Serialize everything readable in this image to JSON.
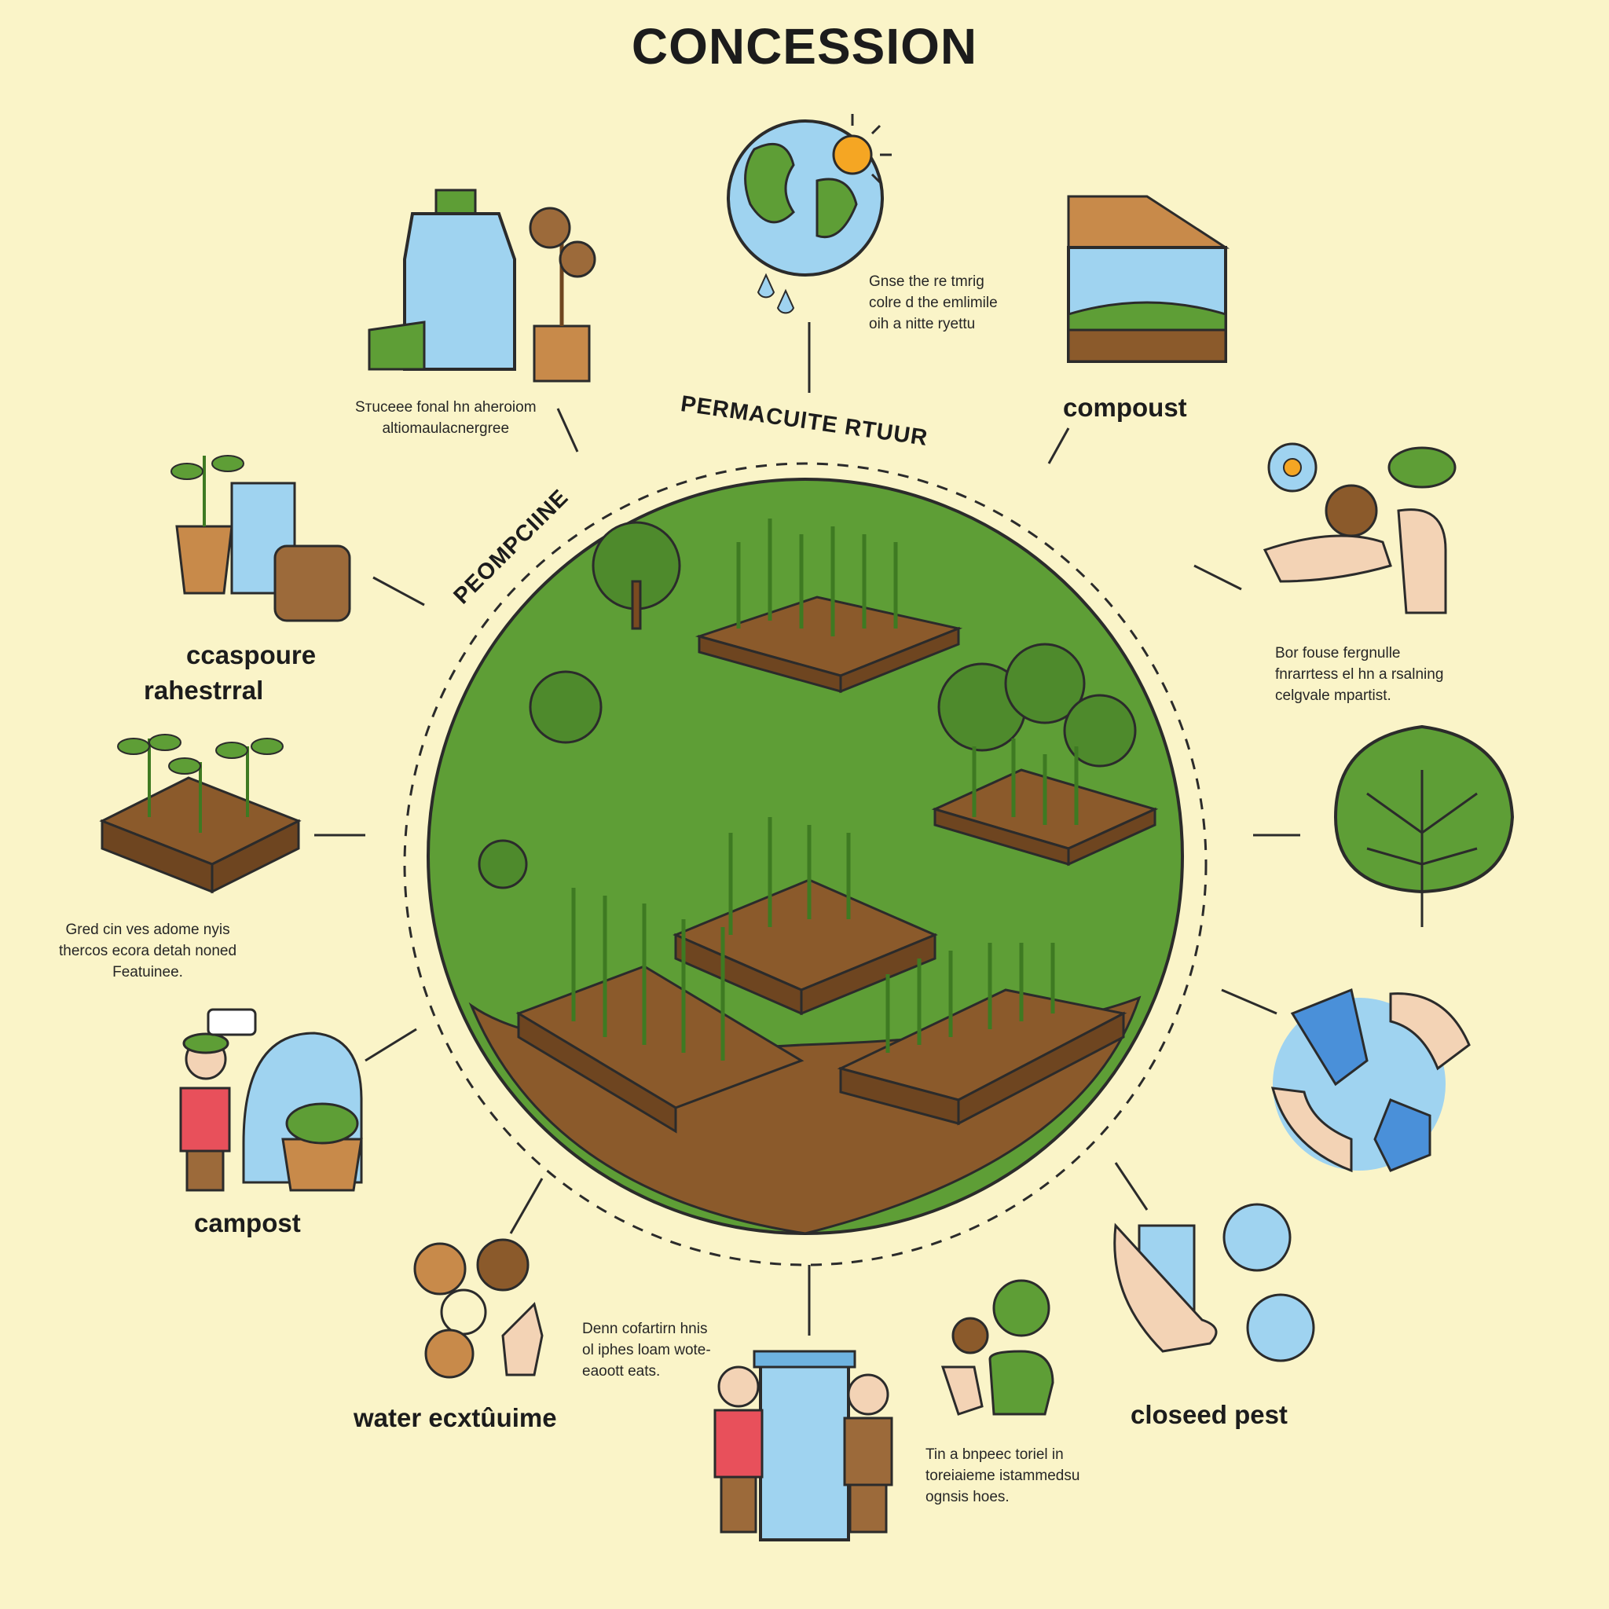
{
  "title": "CONCESSION",
  "ring_labels": {
    "top": "PERMACUlTE RTUUR",
    "left": "PEOMPCIINE"
  },
  "labels": {
    "ccaspoure": "ccaspoure",
    "rahestrral": "rahestrral",
    "compoust": "compoust",
    "campost": "campost",
    "water_ecxtuime": "water ecxtûuime",
    "closeed_pest": "closeed pest"
  },
  "captions": {
    "bottle": "Sтuceee fonal hn aheroiom\naltiomaulacnergree",
    "globe": "Gnse the re tmrig\ncolre d the emlimile\noih a nitte ryettu",
    "raised_bed": "Gred cin ves adome nyis\nthercos ecora detah noned\nFeatuinee.",
    "hands_seeds": "Bor fouse fergnulle\nfnrarrtess el hn a rsalning\ncelgvale mpartist.",
    "tools": "Denn cofartirn hnis\nol iphes loam wote-\neaoott eats.",
    "water_tank": "Tin a bnpeec toriel in\ntoreiaieme istammedsu\nognsis hoes."
  },
  "colors": {
    "background": "#FAF4C8",
    "grass": "#5E9E36",
    "soil": "#8B5A2B",
    "water": "#9FD3F0",
    "outline": "#2B2B2B"
  },
  "icons": [
    "water-bottle-icon",
    "oak-sapling-icon",
    "globe-icon",
    "sun-icon",
    "cold-frame-icon",
    "potted-seedlings-icon",
    "water-barrel-icon",
    "hands-seeds-icon",
    "flower-icon",
    "sprout-bed-icon",
    "leaf-icon",
    "gardener-icon",
    "compost-basket-icon",
    "tools-icon",
    "recycle-hands-icon",
    "water-tank-icon",
    "people-icon",
    "seedling-hand-icon",
    "seed-packet-icon"
  ]
}
